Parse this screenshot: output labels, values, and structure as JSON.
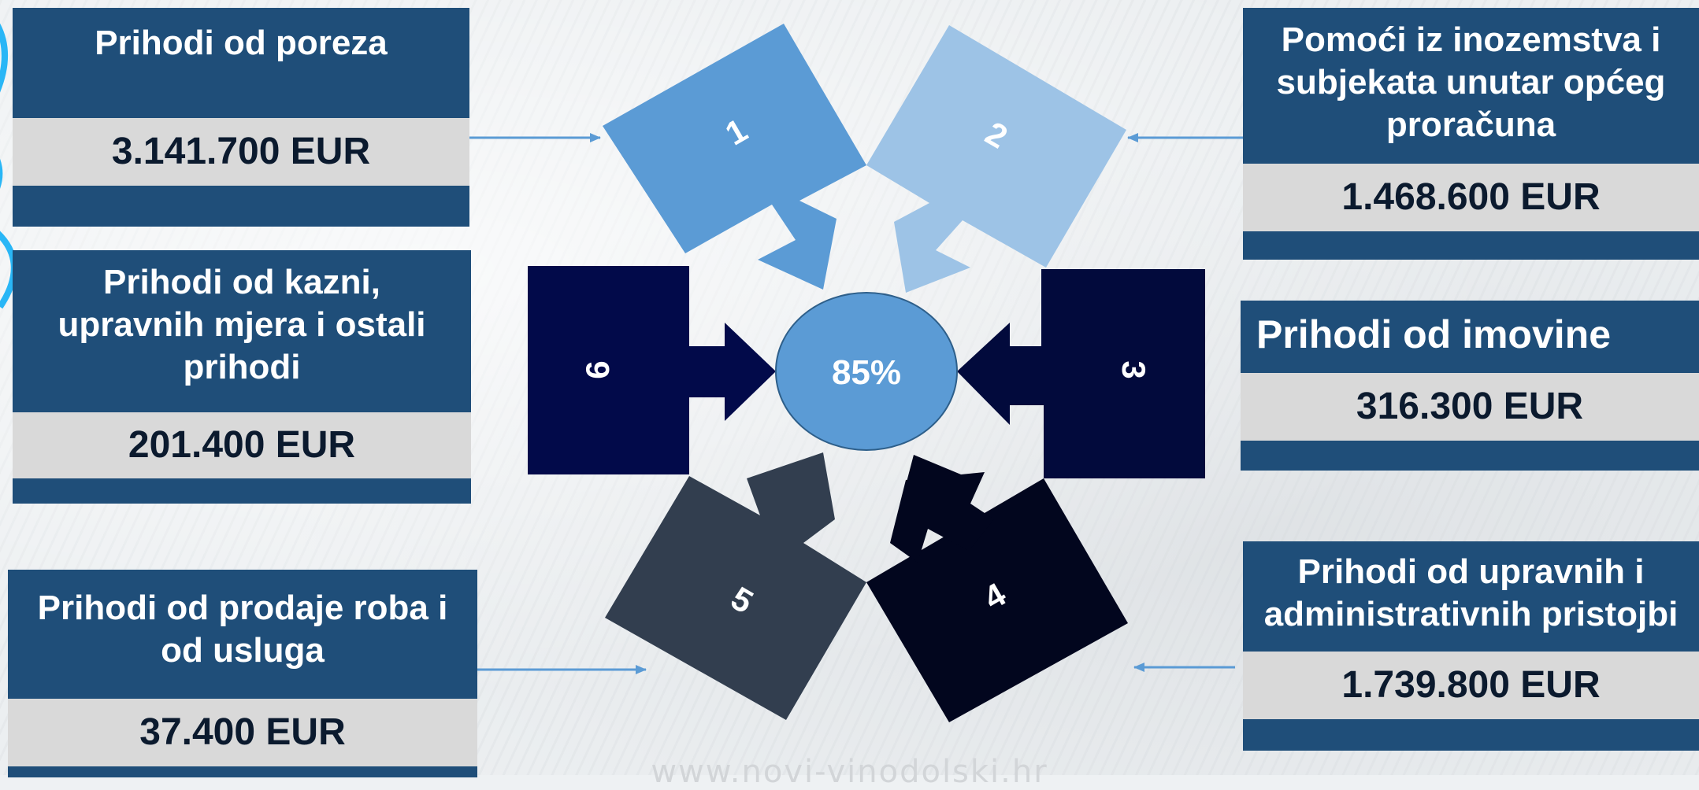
{
  "center": {
    "label": "85%"
  },
  "pieces": [
    {
      "number": "1",
      "color": "#5b9bd5"
    },
    {
      "number": "2",
      "color": "#9dc3e6"
    },
    {
      "number": "3",
      "color": "#020a3c"
    },
    {
      "number": "4",
      "color": "#02061e"
    },
    {
      "number": "5",
      "color": "#323e4f"
    },
    {
      "number": "6",
      "color": "#020a4a"
    }
  ],
  "cards": {
    "porez": {
      "title": "Prihodi od poreza",
      "value": "3.141.700 EUR"
    },
    "pomoci": {
      "title_lines": [
        "Pomoći iz inozemstva i",
        "subjekata unutar općeg",
        "proračuna"
      ],
      "value": "1.468.600 EUR"
    },
    "kazne": {
      "title_lines": [
        "Prihodi od kazni,",
        "upravnih mjera i ostali",
        "prihodi"
      ],
      "value": "201.400 EUR"
    },
    "imovina": {
      "title": "Prihodi od imovine",
      "value": "316.300 EUR"
    },
    "prodaja": {
      "title_lines": [
        "Prihodi od prodaje roba i",
        "od usluga"
      ],
      "value": "37.400 EUR"
    },
    "pristojbe": {
      "title_lines": [
        "Prihodi od upravnih i",
        "administrativnih pristojbi"
      ],
      "value": "1.739.800 EUR"
    }
  },
  "watermark": "www.novi-vinodolski.hr",
  "colors": {
    "card_title_bg": "#1f4e79",
    "card_value_bg": "#d9d9d9",
    "connector": "#5b9bd5"
  }
}
